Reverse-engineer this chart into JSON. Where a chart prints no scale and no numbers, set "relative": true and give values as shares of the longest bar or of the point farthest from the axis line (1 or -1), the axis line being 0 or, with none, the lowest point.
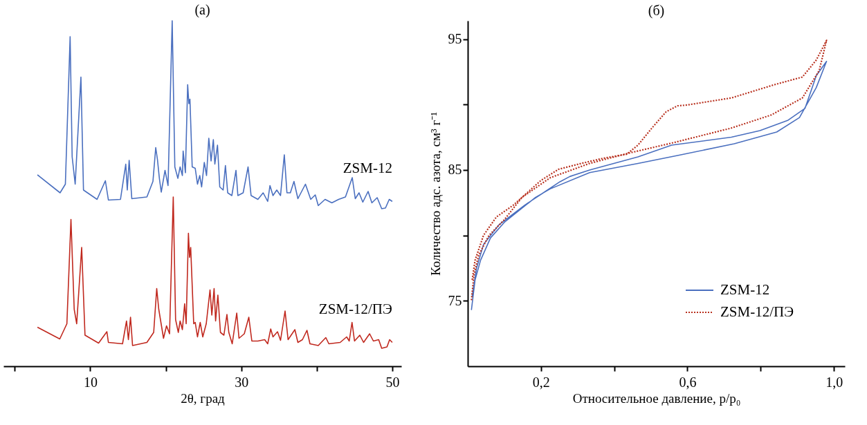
{
  "chart_data": [
    {
      "type": "line",
      "title": "(a)",
      "xlabel": "2θ, град",
      "relative": true,
      "tick_labels": "x",
      "legend": false,
      "grid": false,
      "xlim": [
        -1.5,
        51.2
      ],
      "xticks": [
        {
          "value": 0,
          "label": null
        },
        10,
        {
          "value": 20,
          "label": null
        },
        30,
        {
          "value": 40,
          "label": null
        },
        50
      ],
      "series": [
        {
          "name": "ZSM-12",
          "color": "#4a6fbf",
          "line_style": "solid",
          "x": [
            3.0,
            6.0,
            6.7,
            7.33,
            7.6,
            8.0,
            8.76,
            9.1,
            10.9,
            12.0,
            12.4,
            14.0,
            14.7,
            14.9,
            15.15,
            15.5,
            17.5,
            18.3,
            18.67,
            18.9,
            19.15,
            19.4,
            19.9,
            20.3,
            20.85,
            21.2,
            21.6,
            21.9,
            22.2,
            22.3,
            22.6,
            22.9,
            23.06,
            23.2,
            23.5,
            23.9,
            24.2,
            24.5,
            24.75,
            25.1,
            25.4,
            25.7,
            26.0,
            26.3,
            26.5,
            26.85,
            27.15,
            27.6,
            27.9,
            28.2,
            28.75,
            29.3,
            29.55,
            30.25,
            30.9,
            31.3,
            32.2,
            32.9,
            33.5,
            33.8,
            34.2,
            34.7,
            35.2,
            35.7,
            36.05,
            36.5,
            36.98,
            37.5,
            38.5,
            39.2,
            39.8,
            40.2,
            41.1,
            42.0,
            42.9,
            43.8,
            44.7,
            45.1,
            45.6,
            46.1,
            46.8,
            47.3,
            48.0,
            48.6,
            49.1,
            49.6,
            50.0
          ],
          "values": [
            0.554,
            0.502,
            0.527,
            0.954,
            0.606,
            0.527,
            0.837,
            0.51,
            0.483,
            0.537,
            0.481,
            0.483,
            0.585,
            0.51,
            0.596,
            0.485,
            0.49,
            0.535,
            0.633,
            0.598,
            0.544,
            0.504,
            0.567,
            0.523,
            1.0,
            0.577,
            0.544,
            0.577,
            0.552,
            0.623,
            0.56,
            0.815,
            0.76,
            0.773,
            0.577,
            0.573,
            0.527,
            0.552,
            0.519,
            0.59,
            0.552,
            0.66,
            0.594,
            0.656,
            0.585,
            0.64,
            0.519,
            0.51,
            0.581,
            0.502,
            0.494,
            0.567,
            0.494,
            0.502,
            0.577,
            0.494,
            0.483,
            0.502,
            0.477,
            0.523,
            0.494,
            0.51,
            0.494,
            0.612,
            0.502,
            0.502,
            0.535,
            0.485,
            0.527,
            0.483,
            0.496,
            0.465,
            0.483,
            0.473,
            0.483,
            0.49,
            0.546,
            0.485,
            0.502,
            0.475,
            0.506,
            0.473,
            0.488,
            0.456,
            0.458,
            0.483,
            0.477
          ]
        },
        {
          "name": "ZSM-12/ПЭ",
          "color": "#c0281e",
          "line_style": "solid",
          "x": [
            3.0,
            5.96,
            6.9,
            7.44,
            7.87,
            8.2,
            8.86,
            9.3,
            11.1,
            12.2,
            12.4,
            14.27,
            14.8,
            15.05,
            15.33,
            15.6,
            17.5,
            18.4,
            18.8,
            19.07,
            19.7,
            20.1,
            20.5,
            20.99,
            21.3,
            21.66,
            21.9,
            22.2,
            22.5,
            22.7,
            23.0,
            23.15,
            23.3,
            23.7,
            23.9,
            24.2,
            24.56,
            24.9,
            25.36,
            25.86,
            26.1,
            26.4,
            26.6,
            26.9,
            27.24,
            27.7,
            28.1,
            28.35,
            28.8,
            29.4,
            29.7,
            30.4,
            31.0,
            31.4,
            32.2,
            33.1,
            33.5,
            33.9,
            34.2,
            34.8,
            35.2,
            35.8,
            36.2,
            37.1,
            37.5,
            38.1,
            38.7,
            39.1,
            40.2,
            41.2,
            41.6,
            43.1,
            43.96,
            44.3,
            44.67,
            45.0,
            45.7,
            46.2,
            47.0,
            47.5,
            48.2,
            48.6,
            49.3,
            49.65,
            50.0
          ],
          "values": [
            0.113,
            0.079,
            0.123,
            0.425,
            0.165,
            0.123,
            0.344,
            0.09,
            0.067,
            0.1,
            0.069,
            0.065,
            0.131,
            0.077,
            0.142,
            0.06,
            0.069,
            0.098,
            0.225,
            0.165,
            0.081,
            0.117,
            0.094,
            0.49,
            0.135,
            0.098,
            0.131,
            0.106,
            0.181,
            0.123,
            0.385,
            0.315,
            0.344,
            0.123,
            0.127,
            0.085,
            0.127,
            0.085,
            0.123,
            0.221,
            0.148,
            0.225,
            0.131,
            0.206,
            0.098,
            0.09,
            0.15,
            0.098,
            0.065,
            0.154,
            0.081,
            0.094,
            0.142,
            0.073,
            0.073,
            0.077,
            0.065,
            0.108,
            0.085,
            0.1,
            0.075,
            0.16,
            0.077,
            0.106,
            0.069,
            0.077,
            0.104,
            0.065,
            0.06,
            0.083,
            0.065,
            0.069,
            0.085,
            0.073,
            0.127,
            0.073,
            0.09,
            0.069,
            0.094,
            0.073,
            0.077,
            0.052,
            0.056,
            0.077,
            0.069
          ]
        }
      ]
    },
    {
      "type": "line",
      "title": "(б)",
      "xlabel": "Относительное давление, p/p₀",
      "ylabel": "Количество адс. азота, см³ г⁻¹",
      "legend": "bottom right",
      "grid": false,
      "xlim": [
        0,
        1.03
      ],
      "xticks": [
        {
          "value": 0.2,
          "label": "0,2"
        },
        {
          "value": 0.4,
          "label": null
        },
        {
          "value": 0.6,
          "label": "0,6"
        },
        {
          "value": 0.8,
          "label": null
        },
        {
          "value": 1.0,
          "label": "1,0"
        }
      ],
      "ylim": [
        70,
        96.4
      ],
      "yticks": [
        75,
        {
          "value": 80,
          "label": null
        },
        85,
        {
          "value": 90,
          "label": null
        },
        95
      ],
      "series": [
        {
          "name": "ZSM-12",
          "color": "#4a6fbf",
          "line_style": "solid",
          "x": [
            0.01,
            0.02,
            0.035,
            0.062,
            0.1,
            0.185,
            0.225,
            0.333,
            0.465,
            0.573,
            0.728,
            0.844,
            0.906,
            0.952,
            0.98,
            0.952,
            0.921,
            0.875,
            0.798,
            0.72,
            0.557,
            0.465,
            0.333,
            0.279,
            0.252,
            0.217,
            0.155,
            0.085,
            0.043,
            0.024,
            0.012
          ],
          "values": [
            74.3,
            76.6,
            78.1,
            79.8,
            81.0,
            82.9,
            83.55,
            84.8,
            85.5,
            86.1,
            87.0,
            87.9,
            89.0,
            91.3,
            93.3,
            92.2,
            89.7,
            88.8,
            88.0,
            87.5,
            86.9,
            86.0,
            85.0,
            84.5,
            84.1,
            83.45,
            82.3,
            80.8,
            79.3,
            77.5,
            75.3
          ]
        },
        {
          "name": "ZSM-12/ПЭ",
          "color": "#b8301e",
          "line_style": "dotted",
          "x": [
            0.01,
            0.017,
            0.03,
            0.058,
            0.1,
            0.148,
            0.225,
            0.333,
            0.442,
            0.557,
            0.72,
            0.829,
            0.914,
            0.96,
            0.98,
            0.952,
            0.914,
            0.836,
            0.72,
            0.596,
            0.573,
            0.542,
            0.503,
            0.465,
            0.434,
            0.371,
            0.31,
            0.248,
            0.2,
            0.124,
            0.078,
            0.043,
            0.02,
            0.012
          ],
          "values": [
            75.05,
            77.0,
            78.5,
            80.0,
            81.2,
            82.9,
            84.4,
            85.5,
            86.3,
            87.05,
            88.2,
            89.2,
            90.5,
            92.6,
            94.9,
            93.4,
            92.1,
            91.5,
            90.5,
            89.95,
            89.9,
            89.45,
            88.2,
            86.9,
            86.2,
            85.9,
            85.5,
            85.05,
            84.2,
            82.3,
            81.4,
            80.0,
            78.1,
            76.6
          ]
        }
      ]
    }
  ]
}
